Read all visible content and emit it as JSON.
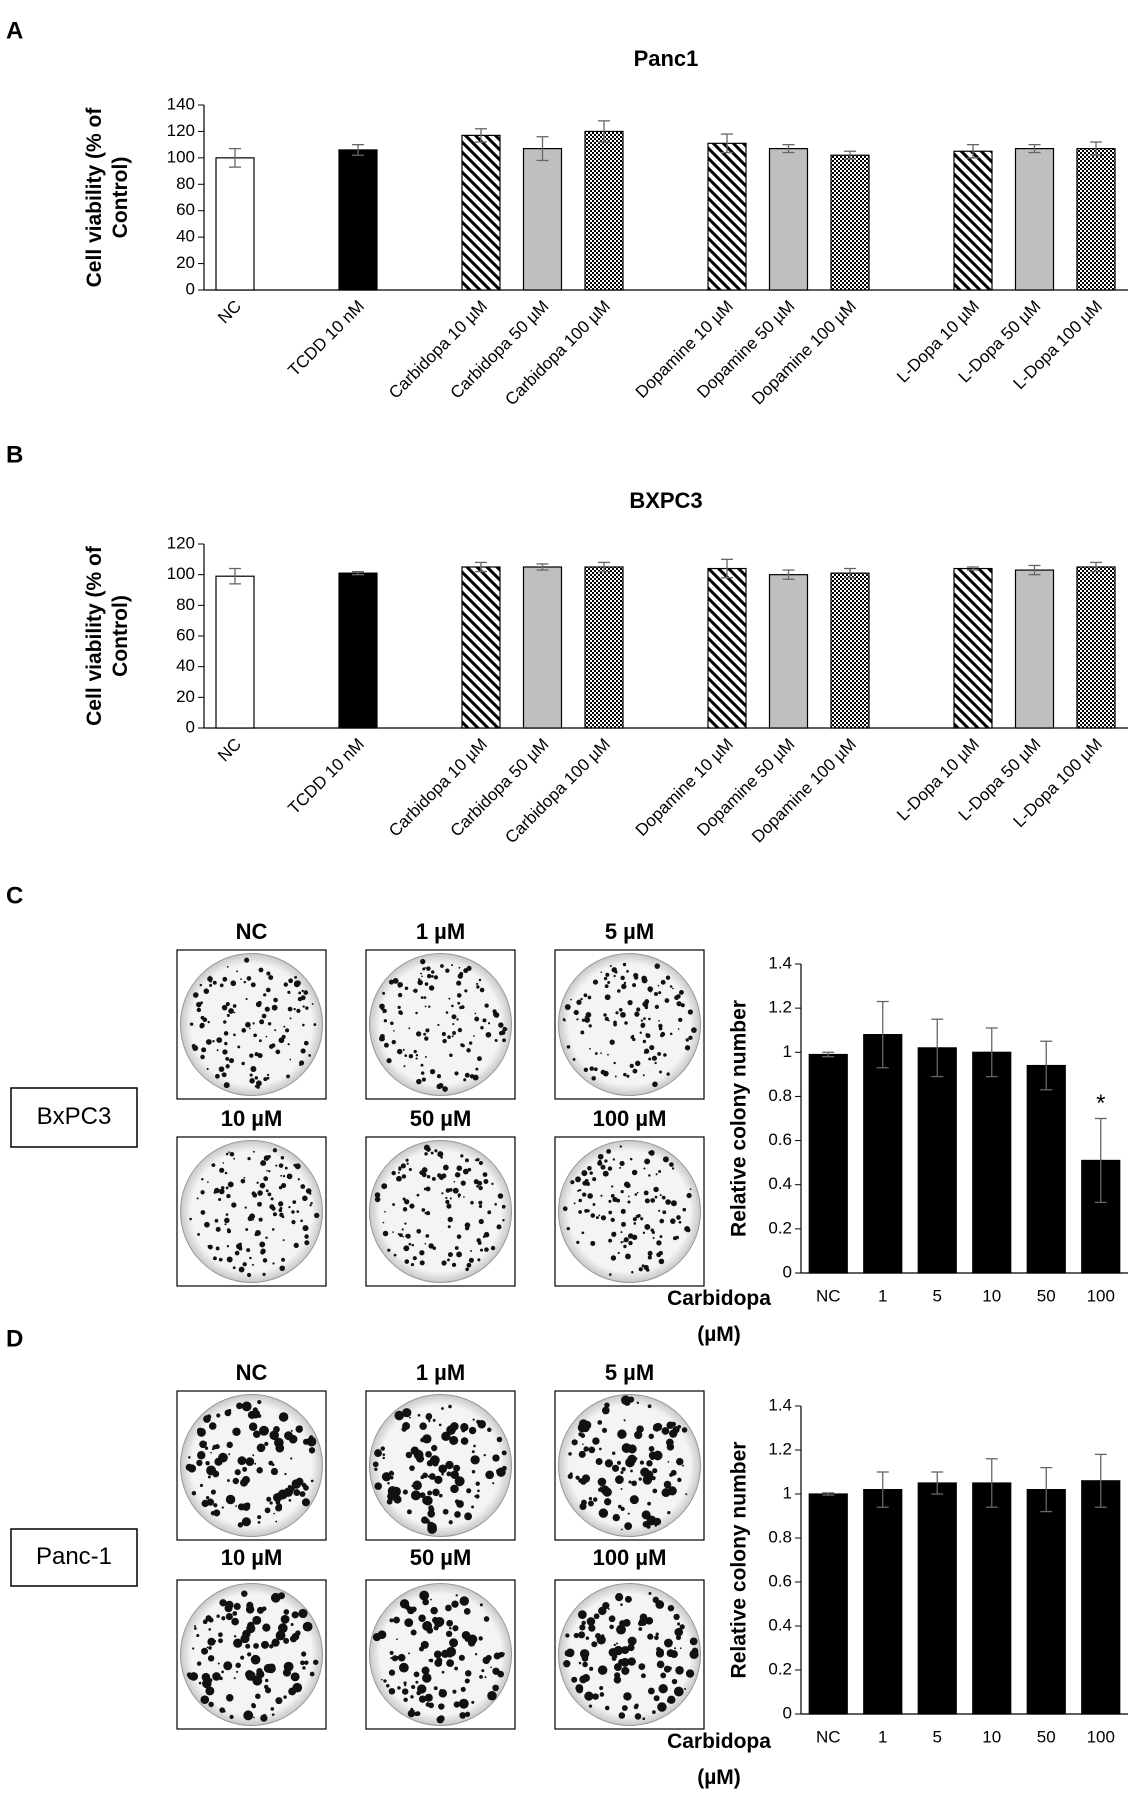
{
  "panel_labels": [
    "A",
    "B",
    "C",
    "D"
  ],
  "colony_panels": [
    {
      "cell_line": "BxPC3",
      "labels": [
        "NC",
        "1 µM",
        "5 µM",
        "10 µM",
        "50 µM",
        "100 µM"
      ]
    },
    {
      "cell_line": "Panc-1",
      "labels": [
        "NC",
        "1 µM",
        "5 µM",
        "10 µM",
        "50 µM",
        "100 µM"
      ]
    }
  ],
  "chart_data": [
    {
      "type": "bar",
      "title": "Panc1",
      "y_label": "Cell viability (% of Control)",
      "categories": [
        "NC",
        "TCDD 10 nM",
        "Carbidopa 10 µM",
        "Carbidopa 50 µM",
        "Carbidopa 100 µM",
        "Dopamine 10 µM",
        "Dopamine 50 µM",
        "Dopamine 100 µM",
        "L-Dopa 10 µM",
        "L-Dopa 50 µM",
        "L-Dopa 100 µM"
      ],
      "values": [
        100,
        106,
        117,
        107,
        120,
        111,
        107,
        102,
        105,
        107,
        107
      ],
      "errors": [
        7,
        4,
        5,
        9,
        8,
        7,
        3,
        3,
        5,
        3,
        5
      ],
      "patterns": [
        "open",
        "solid",
        "hatch",
        "gray",
        "checker",
        "hatch",
        "gray",
        "checker",
        "hatch",
        "gray",
        "checker"
      ],
      "ylim": [
        0,
        140
      ],
      "yticks": [
        0,
        20,
        40,
        60,
        80,
        100,
        120,
        140
      ]
    },
    {
      "type": "bar",
      "title": "BXPC3",
      "y_label": "Cell viability (% of Control)",
      "categories": [
        "NC",
        "TCDD 10 nM",
        "Carbidopa 10 µM",
        "Carbidopa 50 µM",
        "Carbidopa 100 µM",
        "Dopamine 10 µM",
        "Dopamine 50 µM",
        "Dopamine 100 µM",
        "L-Dopa 10 µM",
        "L-Dopa 50 µM",
        "L-Dopa 100 µM"
      ],
      "values": [
        99,
        101,
        105,
        105,
        105,
        104,
        100,
        101,
        104,
        103,
        105
      ],
      "errors": [
        5,
        1,
        3,
        2,
        3,
        6,
        3,
        3,
        1,
        3,
        3
      ],
      "patterns": [
        "open",
        "solid",
        "hatch",
        "gray",
        "checker",
        "hatch",
        "gray",
        "checker",
        "hatch",
        "gray",
        "checker"
      ],
      "ylim": [
        0,
        120
      ],
      "yticks": [
        0,
        20,
        40,
        60,
        80,
        100,
        120
      ]
    },
    {
      "type": "bar",
      "y_label": "Relative colony number",
      "x_label": "Carbidopa (µM)",
      "categories": [
        "NC",
        "1",
        "5",
        "10",
        "50",
        "100"
      ],
      "values": [
        0.99,
        1.08,
        1.02,
        1.0,
        0.94,
        0.51
      ],
      "errors": [
        0.01,
        0.15,
        0.13,
        0.11,
        0.11,
        0.19
      ],
      "color": "#000000",
      "annotations": [
        {
          "text": "*",
          "category": "100"
        }
      ],
      "ylim": [
        0,
        1.4
      ],
      "yticks": [
        0,
        0.2,
        0.4,
        0.6,
        0.8,
        1,
        1.2,
        1.4
      ]
    },
    {
      "type": "bar",
      "y_label": "Relative colony number",
      "x_label": "Carbidopa (µM)",
      "categories": [
        "NC",
        "1",
        "5",
        "10",
        "50",
        "100"
      ],
      "values": [
        1.0,
        1.02,
        1.05,
        1.05,
        1.02,
        1.06
      ],
      "errors": [
        0.005,
        0.08,
        0.05,
        0.11,
        0.1,
        0.12
      ],
      "color": "#000000",
      "ylim": [
        0,
        1.4
      ],
      "yticks": [
        0,
        0.2,
        0.4,
        0.6,
        0.8,
        1,
        1.2,
        1.4
      ]
    }
  ]
}
